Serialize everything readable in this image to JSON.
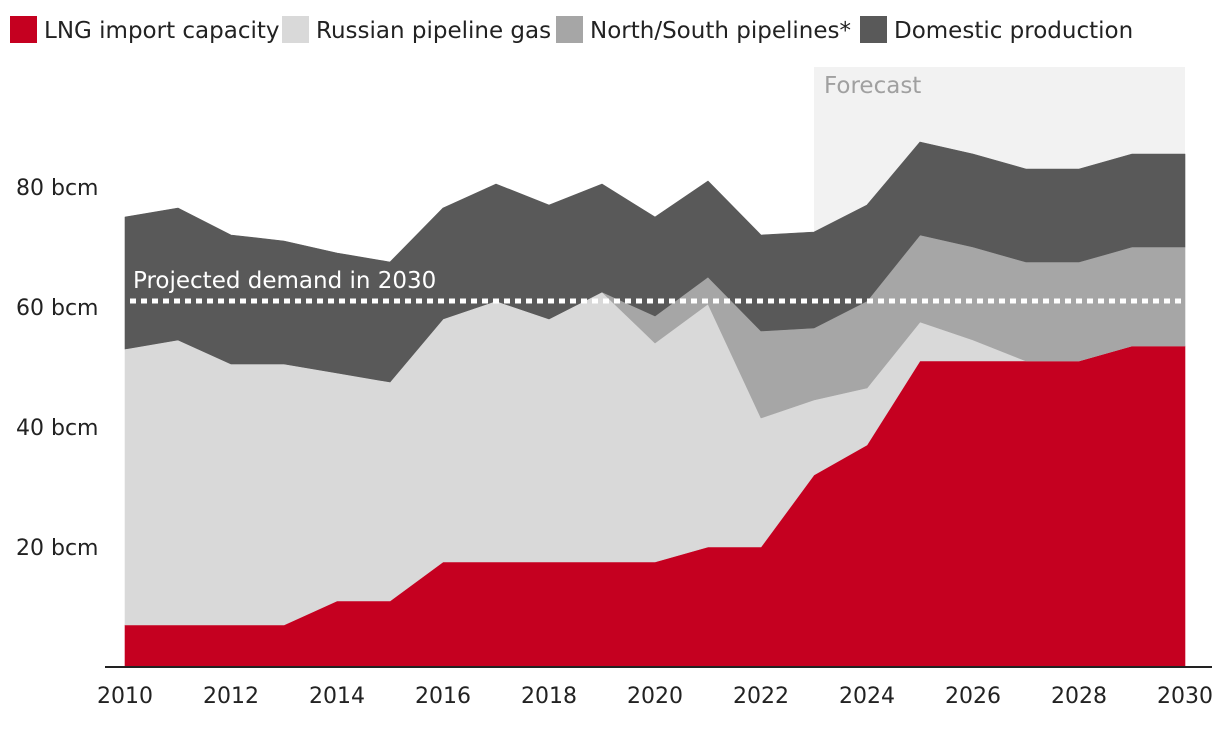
{
  "chart_data": {
    "type": "area",
    "stacked": true,
    "title": "",
    "xlabel": "",
    "ylabel": "",
    "x": [
      2010,
      2011,
      2012,
      2013,
      2014,
      2015,
      2016,
      2017,
      2018,
      2019,
      2020,
      2021,
      2022,
      2023,
      2024,
      2025,
      2026,
      2027,
      2028,
      2029,
      2030
    ],
    "x_ticks": [
      "2010",
      "2012",
      "2014",
      "2016",
      "2018",
      "2020",
      "2022",
      "2024",
      "2026",
      "2028",
      "2030"
    ],
    "y_ticks": [
      "20 bcm",
      "40 bcm",
      "60 bcm",
      "80 bcm"
    ],
    "y_tick_values": [
      20,
      40,
      60,
      80
    ],
    "ylim": [
      0,
      100
    ],
    "xlim": [
      2010,
      2030
    ],
    "legend_position": "top",
    "series": [
      {
        "name": "LNG import capacity",
        "color": "#c50020",
        "values": [
          7,
          7,
          7,
          7,
          11,
          11,
          17.5,
          17.5,
          17.5,
          17.5,
          17.5,
          20,
          20,
          32,
          37,
          51,
          51,
          51,
          51,
          53.5,
          53.5
        ]
      },
      {
        "name": "Russian pipeline gas",
        "color": "#d9d9d9",
        "values": [
          46,
          47.5,
          43.5,
          43.5,
          38,
          36.5,
          40.5,
          43.5,
          40.5,
          45,
          36.5,
          40.5,
          21.5,
          12.5,
          9.5,
          6.5,
          3.5,
          0,
          0,
          0,
          0
        ]
      },
      {
        "name": "North/South pipelines*",
        "color": "#a6a6a6",
        "values": [
          0,
          0,
          0,
          0,
          0,
          0,
          0,
          0,
          0,
          0,
          4.5,
          4.5,
          14.5,
          12,
          14.5,
          14.5,
          15.5,
          16.5,
          16.5,
          16.5,
          16.5
        ]
      },
      {
        "name": "Domestic production",
        "color": "#595959",
        "values": [
          22,
          22,
          21.5,
          20.5,
          20,
          20,
          18.5,
          19.5,
          19,
          18,
          16.5,
          16,
          16,
          16,
          16,
          15.5,
          15.5,
          15.5,
          15.5,
          15.5,
          15.5
        ]
      }
    ],
    "annotations": {
      "demand_line": {
        "label": "Projected demand in 2030",
        "value": 61
      },
      "forecast_region": {
        "label": "Forecast",
        "from": 2023,
        "to": 2030,
        "color": "#f2f2f2"
      }
    }
  }
}
